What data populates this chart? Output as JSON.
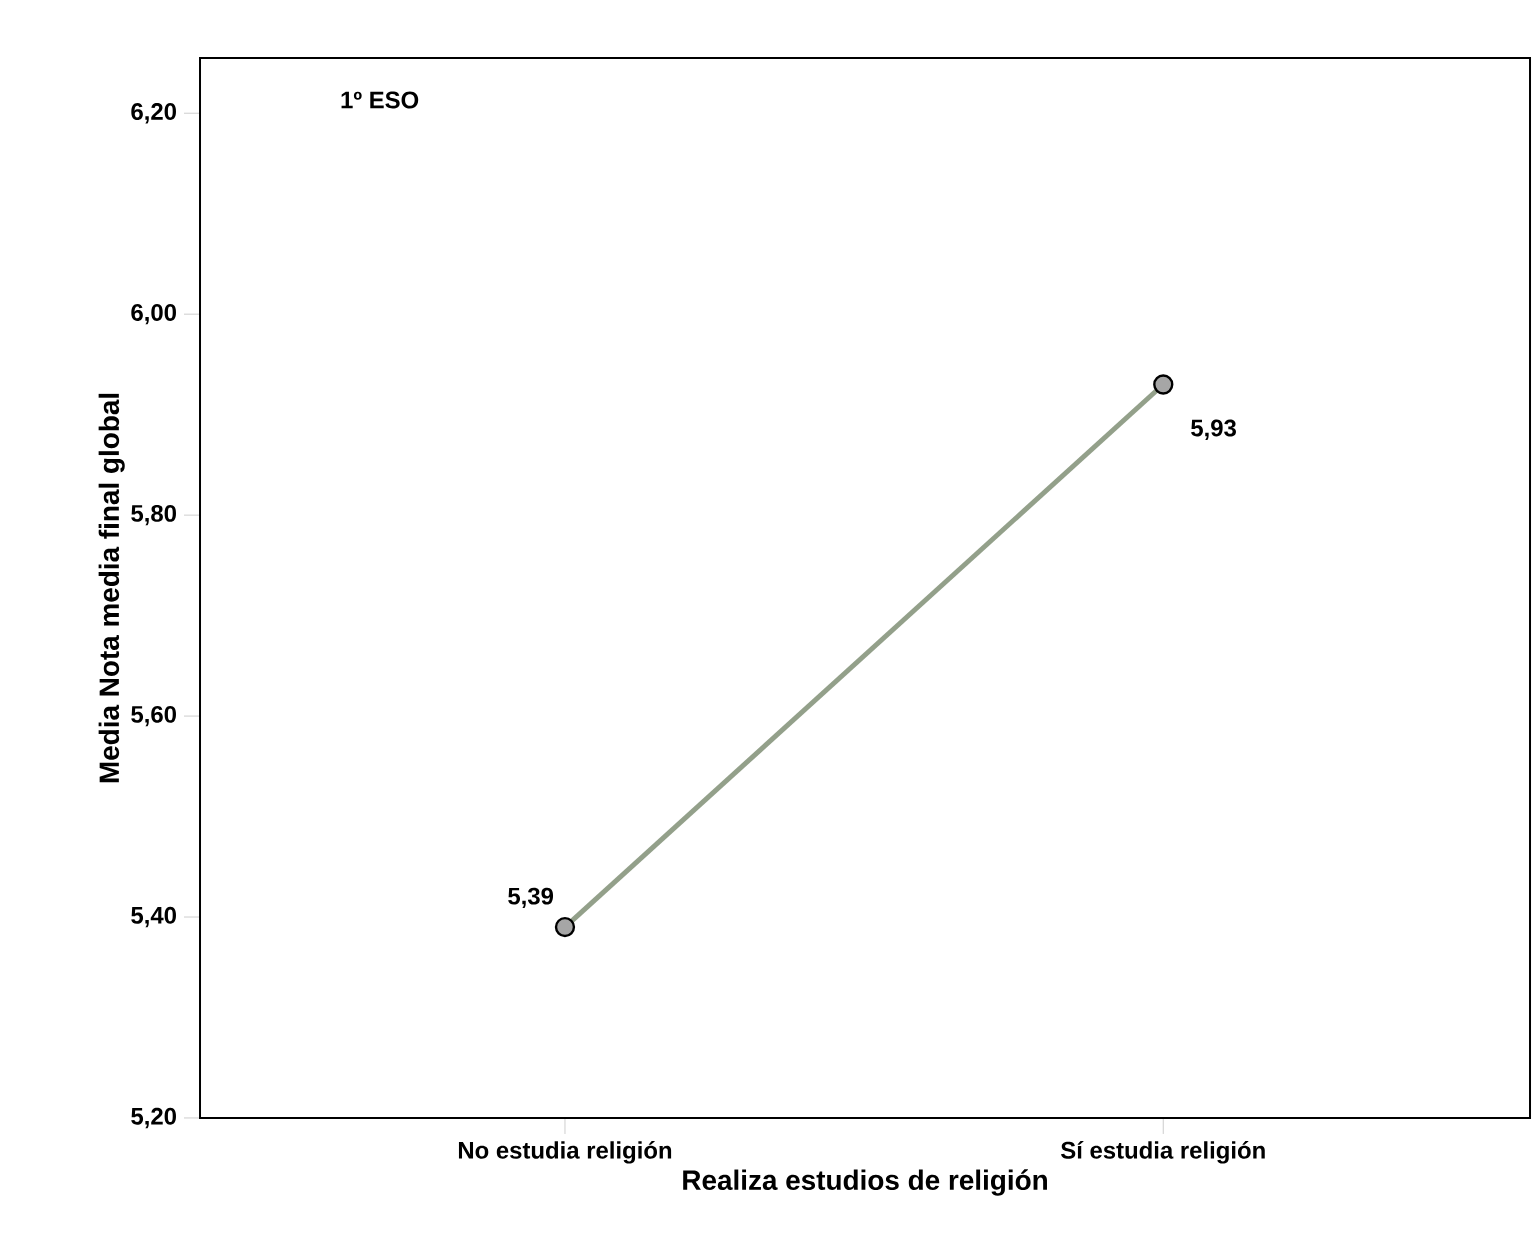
{
  "chart_data": {
    "type": "line",
    "annotations": [
      "1º ESO"
    ],
    "xlabel": "Realiza estudios de religión",
    "ylabel": "Media Nota media final global",
    "categories": [
      "No estudia religión",
      "Sí estudia religión"
    ],
    "series": [
      {
        "color": "#93a08a",
        "values": [
          5.39,
          5.93
        ],
        "value_labels": [
          "5,39",
          "5,93"
        ]
      }
    ],
    "ylim": [
      5.2,
      6.255
    ],
    "yticks": [
      {
        "value": 5.2,
        "label": "5,20"
      },
      {
        "value": 5.4,
        "label": "5,40"
      },
      {
        "value": 5.6,
        "label": "5,60"
      },
      {
        "value": 5.8,
        "label": "5,80"
      },
      {
        "value": 6.0,
        "label": "6,00"
      },
      {
        "value": 6.2,
        "label": "6,20"
      }
    ],
    "marker": "circle",
    "line_style": "solid",
    "grid": false
  }
}
